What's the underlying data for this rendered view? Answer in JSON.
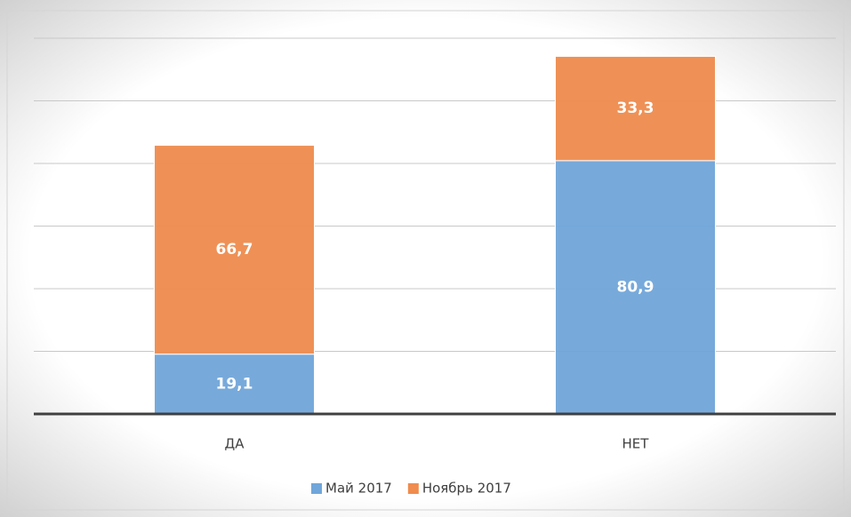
{
  "chart_data": {
    "type": "stacked_bar",
    "categories": [
      "ДА",
      "НЕТ"
    ],
    "series": [
      {
        "name": "Май 2017",
        "color": "#70a6da",
        "values": [
          19.1,
          80.9
        ],
        "value_labels": [
          "19,1",
          "80,9"
        ]
      },
      {
        "name": "Ноябрь 2017",
        "color": "#ef8c4e",
        "values": [
          66.7,
          33.3
        ],
        "value_labels": [
          "66,7",
          "33,3"
        ]
      }
    ],
    "ylim": [
      0,
      120
    ],
    "yticks": [
      0,
      20,
      40,
      60,
      80,
      100,
      120
    ],
    "grid": true,
    "legend": "bottom"
  }
}
